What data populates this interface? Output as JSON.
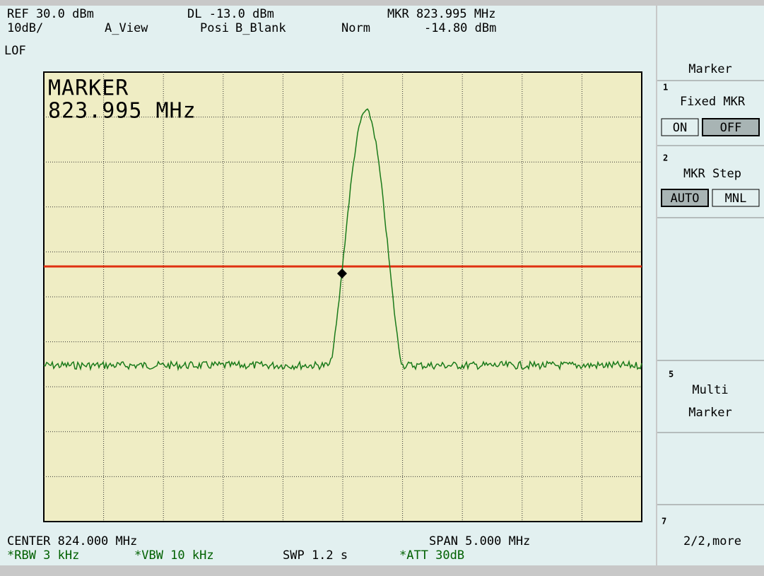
{
  "header": {
    "ref": "REF 30.0 dBm",
    "dl": "DL -13.0 dBm",
    "mkr": "MKR 823.995 MHz",
    "scale": "10dB/",
    "view_a": "A_View",
    "posi": "Posi",
    "view_b": "B_Blank",
    "norm": "Norm",
    "mkr_level": "-14.80 dBm"
  },
  "lof": "LOF",
  "marker_readout": {
    "title": "MARKER",
    "freq": "823.995 MHz"
  },
  "footer": {
    "center": "CENTER 824.000 MHz",
    "span": "SPAN 5.000 MHz",
    "rbw": "*RBW 3 kHz",
    "vbw": "*VBW 10 kHz",
    "swp": "SWP 1.2 s",
    "att": "*ATT 30dB"
  },
  "softkeys": {
    "title": "Marker",
    "keys": [
      {
        "number": "1",
        "label": "Fixed MKR",
        "options": [
          "ON",
          "OFF"
        ]
      },
      {
        "number": "2",
        "label": "MKR Step",
        "options": [
          "AUTO",
          "MNL"
        ]
      },
      {
        "number": "5",
        "lines": [
          "Multi",
          "Marker"
        ]
      },
      {
        "number": "7",
        "label": "2/2,more"
      }
    ]
  }
}
